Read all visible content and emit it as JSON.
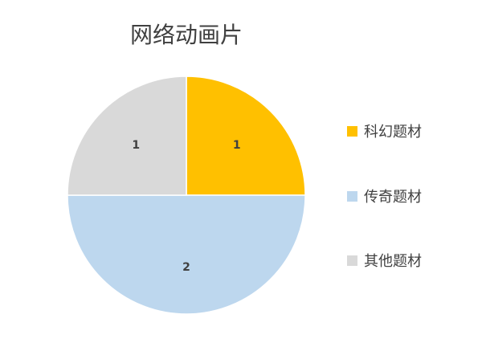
{
  "chart_data": {
    "type": "pie",
    "title": "网络动画片",
    "categories": [
      "科幻题材",
      "传奇题材",
      "其他题材"
    ],
    "values": [
      1,
      2,
      1
    ],
    "colors": [
      "#FFC000",
      "#BDD7EE",
      "#D9D9D9"
    ],
    "data_labels": [
      "1",
      "2",
      "1"
    ],
    "legend_position": "right"
  }
}
